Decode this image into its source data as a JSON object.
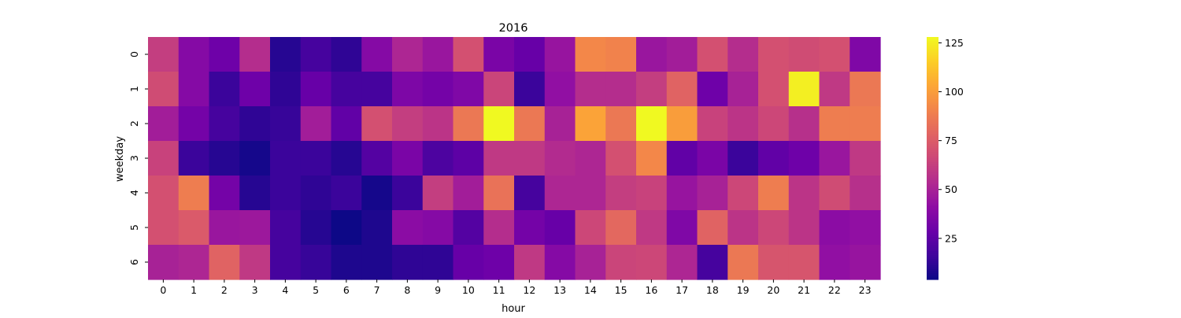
{
  "chart_data": {
    "type": "heatmap",
    "title": "2016",
    "xlabel": "hour",
    "ylabel": "weekday",
    "x_categories": [
      "0",
      "1",
      "2",
      "3",
      "4",
      "5",
      "6",
      "7",
      "8",
      "9",
      "10",
      "11",
      "12",
      "13",
      "14",
      "15",
      "16",
      "17",
      "18",
      "19",
      "20",
      "21",
      "22",
      "23"
    ],
    "y_categories": [
      "0",
      "1",
      "2",
      "3",
      "4",
      "5",
      "6"
    ],
    "values": [
      [
        62,
        38,
        30,
        55,
        10,
        18,
        12,
        38,
        52,
        45,
        70,
        34,
        28,
        44,
        92,
        90,
        45,
        48,
        70,
        55,
        70,
        68,
        70,
        36
      ],
      [
        68,
        38,
        15,
        30,
        12,
        28,
        18,
        18,
        35,
        32,
        36,
        65,
        15,
        42,
        55,
        55,
        62,
        78,
        30,
        50,
        70,
        125,
        60,
        86
      ],
      [
        48,
        32,
        18,
        12,
        14,
        48,
        26,
        70,
        62,
        58,
        86,
        128,
        86,
        50,
        102,
        86,
        128,
        100,
        64,
        58,
        66,
        56,
        88,
        88
      ],
      [
        64,
        15,
        10,
        6,
        15,
        15,
        10,
        22,
        34,
        20,
        25,
        60,
        60,
        54,
        52,
        70,
        92,
        26,
        34,
        15,
        26,
        30,
        45,
        60
      ],
      [
        70,
        88,
        32,
        10,
        15,
        12,
        15,
        6,
        15,
        62,
        48,
        84,
        18,
        52,
        52,
        62,
        64,
        44,
        50,
        66,
        88,
        58,
        68,
        56
      ],
      [
        70,
        74,
        45,
        46,
        18,
        10,
        4,
        8,
        40,
        38,
        22,
        55,
        32,
        28,
        66,
        80,
        60,
        36,
        78,
        58,
        66,
        58,
        40,
        42
      ],
      [
        50,
        52,
        78,
        60,
        18,
        14,
        8,
        8,
        12,
        12,
        28,
        30,
        60,
        38,
        50,
        65,
        66,
        52,
        18,
        86,
        72,
        72,
        42,
        44
      ]
    ],
    "vmin": 4,
    "vmax": 128,
    "colormap": "plasma",
    "colorbar_ticks": [
      25,
      50,
      75,
      100,
      125
    ],
    "grid": false,
    "legend": "colorbar-right"
  }
}
